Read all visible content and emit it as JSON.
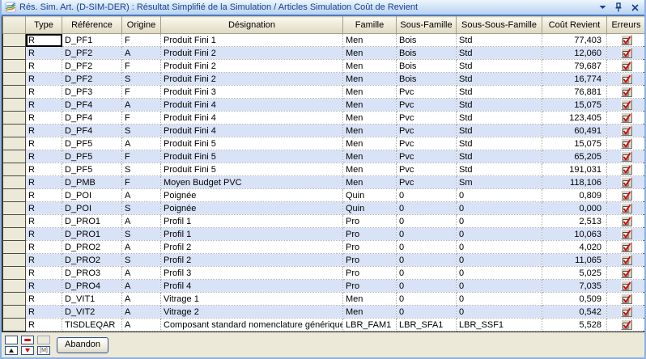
{
  "window": {
    "title": "Rés. Sim. Art. (D-SIM-DER) : Résultat Simplifié de la Simulation / Articles Simulation Coût de Revient"
  },
  "colors": {
    "title_text": "#15428b",
    "row_alt": "#d9e3f7",
    "check_red": "#d40000",
    "panel_bg": "#ece9d8"
  },
  "table": {
    "columns": [
      "Type",
      "Référence",
      "Origine",
      "Désignation",
      "Famille",
      "Sous-Famille",
      "Sous-Sous-Famille",
      "Coût Revient",
      "Erreurs"
    ],
    "rows": [
      [
        "R",
        "D_PF1",
        "F",
        "Produit Fini 1",
        "Men",
        "Bois",
        "Std",
        "77,403",
        "checked"
      ],
      [
        "R",
        "D_PF2",
        "A",
        "Produit Fini 2",
        "Men",
        "Bois",
        "Std",
        "12,060",
        "checked"
      ],
      [
        "R",
        "D_PF2",
        "F",
        "Produit Fini 2",
        "Men",
        "Bois",
        "Std",
        "79,687",
        "checked"
      ],
      [
        "R",
        "D_PF2",
        "S",
        "Produit Fini 2",
        "Men",
        "Bois",
        "Std",
        "16,774",
        "checked"
      ],
      [
        "R",
        "D_PF3",
        "F",
        "Produit Fini 3",
        "Men",
        "Pvc",
        "Std",
        "76,881",
        "checked"
      ],
      [
        "R",
        "D_PF4",
        "A",
        "Produit Fini 4",
        "Men",
        "Pvc",
        "Std",
        "15,075",
        "checked"
      ],
      [
        "R",
        "D_PF4",
        "F",
        "Produit Fini 4",
        "Men",
        "Pvc",
        "Std",
        "123,405",
        "checked"
      ],
      [
        "R",
        "D_PF4",
        "S",
        "Produit Fini 4",
        "Men",
        "Pvc",
        "Std",
        "60,491",
        "checked"
      ],
      [
        "R",
        "D_PF5",
        "A",
        "Produit Fini 5",
        "Men",
        "Pvc",
        "Std",
        "15,075",
        "checked"
      ],
      [
        "R",
        "D_PF5",
        "F",
        "Produit Fini 5",
        "Men",
        "Pvc",
        "Std",
        "65,205",
        "checked"
      ],
      [
        "R",
        "D_PF5",
        "S",
        "Produit Fini 5",
        "Men",
        "Pvc",
        "Std",
        "191,031",
        "checked"
      ],
      [
        "R",
        "D_PMB",
        "F",
        "Moyen Budget PVC",
        "Men",
        "Pvc",
        "Sm",
        "118,106",
        "checked"
      ],
      [
        "R",
        "D_POI",
        "A",
        "Poignée",
        "Quin",
        "0",
        "0",
        "0,809",
        "checked"
      ],
      [
        "R",
        "D_POI",
        "S",
        "Poignée",
        "Quin",
        "0",
        "0",
        "0,000",
        "checked"
      ],
      [
        "R",
        "D_PRO1",
        "A",
        "Profil 1",
        "Pro",
        "0",
        "0",
        "2,513",
        "checked"
      ],
      [
        "R",
        "D_PRO1",
        "S",
        "Profil 1",
        "Pro",
        "0",
        "0",
        "10,063",
        "checked"
      ],
      [
        "R",
        "D_PRO2",
        "A",
        "Profil 2",
        "Pro",
        "0",
        "0",
        "4,020",
        "checked"
      ],
      [
        "R",
        "D_PRO2",
        "S",
        "Profil 2",
        "Pro",
        "0",
        "0",
        "11,065",
        "checked"
      ],
      [
        "R",
        "D_PRO3",
        "A",
        "Profil 3",
        "Pro",
        "0",
        "0",
        "5,025",
        "checked"
      ],
      [
        "R",
        "D_PRO4",
        "A",
        "Profil 4",
        "Pro",
        "0",
        "0",
        "7,035",
        "checked"
      ],
      [
        "R",
        "D_VIT1",
        "A",
        "Vitrage 1",
        "Men",
        "0",
        "0",
        "0,509",
        "checked"
      ],
      [
        "R",
        "D_VIT2",
        "A",
        "Vitrage 2",
        "Men",
        "0",
        "0",
        "0,542",
        "checked"
      ],
      [
        "R",
        "TISDLEQAR",
        "A",
        "Composant standard nomenclature générique",
        "LBR_FAM1",
        "LBR_SFA1",
        "LBR_SSF1",
        "5,528",
        "checked"
      ]
    ],
    "selected_cell": {
      "row": 0,
      "column": "Type"
    }
  },
  "footer": {
    "abandon_label": "Abandon",
    "nav_buttons": [
      "blank",
      "red-bar",
      "blank-disabled",
      "up-arrow",
      "down-arrow",
      "m-marker"
    ]
  }
}
